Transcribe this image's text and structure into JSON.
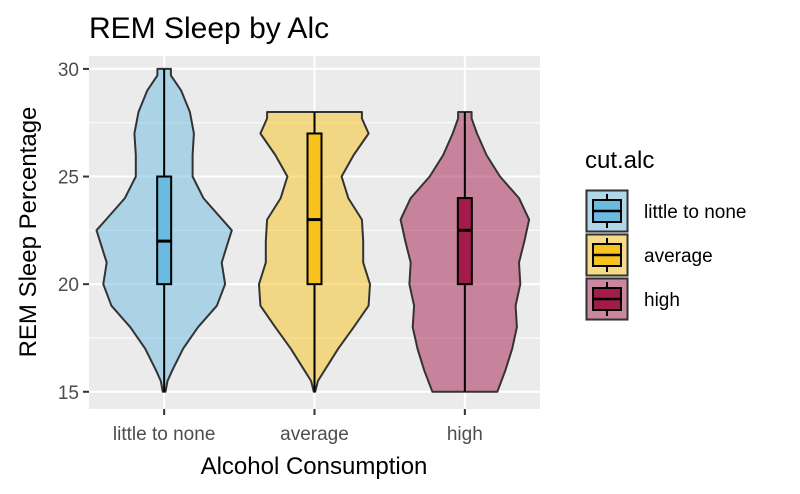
{
  "chart_data": {
    "type": "violin",
    "title": "REM Sleep by Alc",
    "xlabel": "Alcohol Consumption",
    "ylabel": "REM Sleep Percentage",
    "categories": [
      "little to none",
      "average",
      "high"
    ],
    "ylim": [
      14.2,
      30.6
    ],
    "yticks": [
      15,
      20,
      25,
      30
    ],
    "grid": true,
    "legend": {
      "title": "cut.alc",
      "position": "right",
      "entries": [
        "little to none",
        "average",
        "high"
      ]
    },
    "series": [
      {
        "name": "little to none",
        "fill": "#6BBBE0",
        "box_fill": "#6BBBE0",
        "min": 15,
        "q1": 20,
        "median": 22,
        "q3": 25,
        "max": 30,
        "density": [
          [
            15,
            0.02
          ],
          [
            15.5,
            0.05
          ],
          [
            16,
            0.12
          ],
          [
            17,
            0.28
          ],
          [
            18,
            0.5
          ],
          [
            19,
            0.78
          ],
          [
            20,
            0.9
          ],
          [
            21,
            0.85
          ],
          [
            22,
            0.95
          ],
          [
            22.5,
            1.0
          ],
          [
            23,
            0.86
          ],
          [
            24,
            0.58
          ],
          [
            25,
            0.42
          ],
          [
            26,
            0.42
          ],
          [
            27,
            0.44
          ],
          [
            28,
            0.38
          ],
          [
            29,
            0.25
          ],
          [
            29.7,
            0.1
          ],
          [
            30,
            0.1
          ]
        ]
      },
      {
        "name": "average",
        "fill": "#F7C21E",
        "box_fill": "#F7C21E",
        "min": 15,
        "q1": 20,
        "median": 23,
        "q3": 27,
        "max": 28,
        "density": [
          [
            15,
            0.01
          ],
          [
            15.5,
            0.05
          ],
          [
            16,
            0.15
          ],
          [
            17,
            0.35
          ],
          [
            18,
            0.58
          ],
          [
            19,
            0.8
          ],
          [
            20,
            0.82
          ],
          [
            21,
            0.72
          ],
          [
            22,
            0.72
          ],
          [
            23,
            0.7
          ],
          [
            24,
            0.5
          ],
          [
            25,
            0.4
          ],
          [
            26,
            0.58
          ],
          [
            27,
            0.8
          ],
          [
            27.7,
            0.7
          ],
          [
            28,
            0.7
          ]
        ]
      },
      {
        "name": "high",
        "fill": "#A31B4B",
        "box_fill": "#A31B4B",
        "min": 15,
        "q1": 20,
        "median": 22.5,
        "q3": 24,
        "max": 28,
        "density": [
          [
            15,
            0.48
          ],
          [
            16,
            0.6
          ],
          [
            17,
            0.7
          ],
          [
            18,
            0.77
          ],
          [
            19,
            0.75
          ],
          [
            20,
            0.82
          ],
          [
            21,
            0.8
          ],
          [
            22,
            0.88
          ],
          [
            23,
            0.95
          ],
          [
            24,
            0.8
          ],
          [
            25,
            0.52
          ],
          [
            26,
            0.32
          ],
          [
            27,
            0.18
          ],
          [
            27.7,
            0.1
          ],
          [
            28,
            0.1
          ]
        ]
      }
    ]
  }
}
